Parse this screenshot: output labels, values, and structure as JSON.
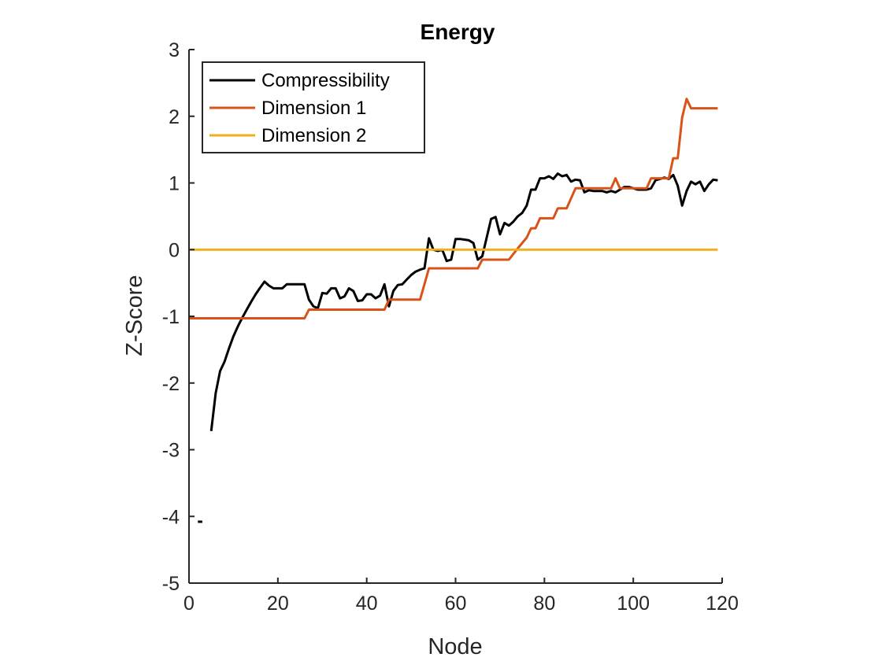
{
  "chart_data": {
    "type": "line",
    "title": "Energy",
    "xlabel": "Node",
    "ylabel": "Z-Score",
    "xlim": [
      0,
      120
    ],
    "ylim": [
      -5,
      3
    ],
    "xticks": [
      0,
      20,
      40,
      60,
      80,
      100,
      120
    ],
    "yticks": [
      -5,
      -4,
      -3,
      -2,
      -1,
      0,
      1,
      2,
      3
    ],
    "grid": false,
    "legend_position": "top-left",
    "series": [
      {
        "name": "Compressibility",
        "color": "#000000",
        "segments": [
          [
            [
              2,
              -4.08
            ],
            [
              3,
              -4.08
            ]
          ],
          [
            [
              5,
              -2.72
            ],
            [
              6,
              -2.15
            ],
            [
              7,
              -1.82
            ],
            [
              8,
              -1.68
            ],
            [
              9,
              -1.48
            ],
            [
              10,
              -1.3
            ],
            [
              11,
              -1.15
            ],
            [
              12,
              -1.02
            ],
            [
              13,
              -0.9
            ],
            [
              14,
              -0.78
            ],
            [
              15,
              -0.67
            ],
            [
              16,
              -0.57
            ],
            [
              17,
              -0.48
            ],
            [
              18,
              -0.54
            ],
            [
              19,
              -0.58
            ],
            [
              20,
              -0.58
            ],
            [
              21,
              -0.58
            ],
            [
              22,
              -0.52
            ],
            [
              23,
              -0.52
            ],
            [
              24,
              -0.52
            ],
            [
              25,
              -0.52
            ],
            [
              26,
              -0.52
            ],
            [
              27,
              -0.75
            ],
            [
              28,
              -0.85
            ],
            [
              29,
              -0.88
            ],
            [
              30,
              -0.65
            ],
            [
              31,
              -0.66
            ],
            [
              32,
              -0.58
            ],
            [
              33,
              -0.58
            ],
            [
              34,
              -0.73
            ],
            [
              35,
              -0.7
            ],
            [
              36,
              -0.58
            ],
            [
              37,
              -0.62
            ],
            [
              38,
              -0.77
            ],
            [
              39,
              -0.76
            ],
            [
              40,
              -0.67
            ],
            [
              41,
              -0.67
            ],
            [
              42,
              -0.73
            ],
            [
              43,
              -0.69
            ],
            [
              44,
              -0.52
            ],
            [
              45,
              -0.85
            ],
            [
              46,
              -0.62
            ],
            [
              47,
              -0.53
            ],
            [
              48,
              -0.52
            ],
            [
              49,
              -0.45
            ],
            [
              50,
              -0.38
            ],
            [
              51,
              -0.33
            ],
            [
              52,
              -0.3
            ],
            [
              53,
              -0.28
            ],
            [
              54,
              0.17
            ],
            [
              55,
              0.0
            ],
            [
              56,
              -0.02
            ],
            [
              57,
              0.0
            ],
            [
              58,
              -0.17
            ],
            [
              59,
              -0.15
            ],
            [
              60,
              0.16
            ],
            [
              61,
              0.16
            ],
            [
              62,
              0.15
            ],
            [
              63,
              0.14
            ],
            [
              64,
              0.1
            ],
            [
              65,
              -0.15
            ],
            [
              66,
              -0.1
            ],
            [
              67,
              0.18
            ],
            [
              68,
              0.46
            ],
            [
              69,
              0.49
            ],
            [
              70,
              0.23
            ],
            [
              71,
              0.4
            ],
            [
              72,
              0.36
            ],
            [
              73,
              0.42
            ],
            [
              74,
              0.5
            ],
            [
              75,
              0.55
            ],
            [
              76,
              0.66
            ],
            [
              77,
              0.9
            ],
            [
              78,
              0.9
            ],
            [
              79,
              1.07
            ],
            [
              80,
              1.07
            ],
            [
              81,
              1.1
            ],
            [
              82,
              1.06
            ],
            [
              83,
              1.14
            ],
            [
              84,
              1.1
            ],
            [
              85,
              1.12
            ],
            [
              86,
              1.02
            ],
            [
              87,
              1.05
            ],
            [
              88,
              1.04
            ],
            [
              89,
              0.86
            ],
            [
              90,
              0.89
            ],
            [
              91,
              0.88
            ],
            [
              92,
              0.88
            ],
            [
              93,
              0.88
            ],
            [
              94,
              0.86
            ],
            [
              95,
              0.88
            ],
            [
              96,
              0.86
            ],
            [
              97,
              0.9
            ],
            [
              98,
              0.94
            ],
            [
              99,
              0.94
            ],
            [
              100,
              0.92
            ],
            [
              101,
              0.9
            ],
            [
              102,
              0.9
            ],
            [
              103,
              0.9
            ],
            [
              104,
              0.92
            ],
            [
              105,
              1.04
            ],
            [
              106,
              1.06
            ],
            [
              107,
              1.08
            ],
            [
              108,
              1.06
            ],
            [
              109,
              1.12
            ],
            [
              110,
              0.96
            ],
            [
              111,
              0.66
            ],
            [
              112,
              0.88
            ],
            [
              113,
              1.02
            ],
            [
              114,
              0.98
            ],
            [
              115,
              1.02
            ],
            [
              116,
              0.88
            ],
            [
              117,
              0.98
            ],
            [
              118,
              1.05
            ],
            [
              119,
              1.04
            ]
          ]
        ]
      },
      {
        "name": "Dimension 1",
        "color": "#D95319",
        "segments": [
          [
            [
              0,
              -1.03
            ],
            [
              26,
              -1.03
            ],
            [
              27,
              -0.9
            ],
            [
              44,
              -0.9
            ],
            [
              45,
              -0.75
            ],
            [
              52,
              -0.75
            ],
            [
              54,
              -0.28
            ],
            [
              65,
              -0.28
            ],
            [
              66,
              -0.15
            ],
            [
              72,
              -0.15
            ],
            [
              74,
              0.02
            ],
            [
              76,
              0.18
            ],
            [
              77,
              0.32
            ],
            [
              78,
              0.32
            ],
            [
              79,
              0.47
            ],
            [
              82,
              0.47
            ],
            [
              83,
              0.62
            ],
            [
              85,
              0.62
            ],
            [
              86,
              0.77
            ],
            [
              87,
              0.92
            ],
            [
              95,
              0.92
            ],
            [
              96,
              1.07
            ],
            [
              97,
              0.92
            ],
            [
              103,
              0.92
            ],
            [
              104,
              1.07
            ],
            [
              108,
              1.07
            ],
            [
              109,
              1.37
            ],
            [
              110,
              1.37
            ],
            [
              111,
              1.98
            ],
            [
              112,
              2.26
            ],
            [
              113,
              2.12
            ],
            [
              119,
              2.12
            ]
          ]
        ]
      },
      {
        "name": "Dimension 2",
        "color": "#EDB120",
        "segments": [
          [
            [
              0,
              0.0
            ],
            [
              119,
              0.0
            ]
          ]
        ]
      }
    ]
  }
}
